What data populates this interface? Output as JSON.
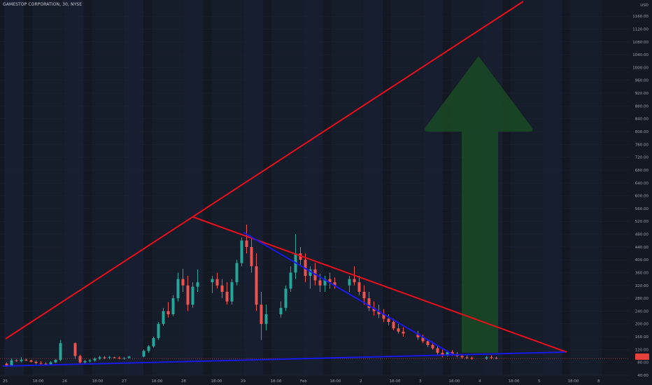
{
  "header": {
    "title": "GAMESTOP CORPORATION, 30, NYSE"
  },
  "currency": "USD",
  "colors": {
    "background": "#141823",
    "band_alt": "#18253a",
    "grid": "#1e2433",
    "up": "#26a69a",
    "down": "#ef5350",
    "trendline_red": "#e8101a",
    "trendline_blue": "#1a1ae6",
    "arrow": "#1a4a25",
    "axis_text": "#9aa0ad",
    "price_badge": "#e8413c"
  },
  "annotations": [
    {
      "name": "ascending-resistance-line",
      "color": "#e8101a"
    },
    {
      "name": "descending-trendline-red",
      "color": "#e8101a"
    },
    {
      "name": "descending-trendline-blue",
      "color": "#1a1ae6"
    },
    {
      "name": "support-line",
      "color": "#1a1ae6"
    },
    {
      "name": "up-arrow",
      "color": "#1a4a25",
      "direction": "up"
    }
  ],
  "chart_data": {
    "type": "candlestick",
    "title": "GAMESTOP CORPORATION, 30, NYSE",
    "ylim": [
      40,
      1180
    ],
    "y_ticks": [
      40,
      80,
      120,
      160,
      200,
      240,
      280,
      320,
      360,
      400,
      440,
      480,
      520,
      560,
      600,
      640,
      680,
      720,
      760,
      800,
      840,
      880,
      920,
      960,
      1000,
      1040,
      1080,
      1120,
      1160
    ],
    "y_tick_labels": [
      "40.00",
      "80.00",
      "120.00",
      "160.00",
      "200.00",
      "240.00",
      "280.00",
      "320.00",
      "360.00",
      "400.00",
      "440.00",
      "480.00",
      "520.00",
      "560.00",
      "600.00",
      "640.00",
      "680.00",
      "720.00",
      "760.00",
      "800.00",
      "840.00",
      "880.00",
      "920.00",
      "960.00",
      "1000.00",
      "1040.00",
      "1080.00",
      "1120.00",
      "1160.00"
    ],
    "x_tick_labels": [
      "25",
      "18:00",
      "26",
      "18:00",
      "27",
      "18:00",
      "28",
      "18:00",
      "29",
      "18:00",
      "Feb",
      "18:00",
      "2",
      "18:00",
      "3",
      "18:00",
      "4",
      "18:00",
      "5",
      "18:00",
      "8"
    ],
    "last_price": 92,
    "sessions": [
      {
        "label": "25",
        "ohlc": [
          [
            76,
            80,
            66,
            70
          ],
          [
            70,
            92,
            68,
            86
          ],
          [
            86,
            90,
            82,
            84
          ],
          [
            84,
            96,
            80,
            88
          ],
          [
            88,
            92,
            84,
            86
          ],
          [
            86,
            88,
            80,
            82
          ],
          [
            82,
            86,
            74,
            78
          ],
          [
            78,
            84,
            72,
            76
          ],
          [
            76,
            80,
            70,
            74
          ],
          [
            74,
            84,
            72,
            80
          ],
          [
            80,
            90,
            78,
            88
          ],
          [
            88,
            150,
            84,
            140
          ]
        ]
      },
      {
        "label": "26",
        "ohlc": [
          [
            140,
            142,
            92,
            100
          ],
          [
            100,
            104,
            76,
            80
          ],
          [
            80,
            88,
            76,
            84
          ],
          [
            84,
            90,
            80,
            86
          ],
          [
            86,
            96,
            82,
            92
          ],
          [
            92,
            100,
            88,
            96
          ],
          [
            96,
            100,
            90,
            94
          ],
          [
            94,
            100,
            90,
            96
          ],
          [
            96,
            98,
            92,
            94
          ],
          [
            94,
            98,
            90,
            92
          ],
          [
            92,
            96,
            88,
            94
          ],
          [
            94,
            100,
            92,
            98
          ]
        ]
      },
      {
        "label": "27",
        "ohlc": [
          [
            98,
            120,
            96,
            116
          ],
          [
            116,
            134,
            110,
            130
          ],
          [
            130,
            160,
            126,
            156
          ],
          [
            156,
            206,
            150,
            200
          ],
          [
            200,
            250,
            194,
            240
          ],
          [
            240,
            268,
            220,
            230
          ],
          [
            230,
            290,
            224,
            280
          ],
          [
            280,
            360,
            270,
            340
          ],
          [
            340,
            372,
            300,
            320
          ],
          [
            320,
            350,
            240,
            260
          ],
          [
            260,
            330,
            250,
            316
          ],
          [
            316,
            370,
            300,
            330
          ]
        ]
      },
      {
        "label": "28",
        "ohlc": [
          [
            330,
            350,
            296,
            340
          ],
          [
            340,
            360,
            310,
            320
          ],
          [
            320,
            340,
            280,
            300
          ],
          [
            300,
            330,
            260,
            270
          ],
          [
            270,
            340,
            260,
            330
          ],
          [
            330,
            400,
            320,
            390
          ],
          [
            390,
            470,
            380,
            460
          ],
          [
            460,
            510,
            420,
            440
          ],
          [
            440,
            470,
            360,
            380
          ],
          [
            380,
            420,
            240,
            260
          ],
          [
            260,
            300,
            150,
            200
          ],
          [
            200,
            260,
            180,
            230
          ]
        ]
      },
      {
        "label": "29",
        "ohlc": [
          [
            230,
            270,
            220,
            250
          ],
          [
            250,
            320,
            240,
            310
          ],
          [
            310,
            380,
            300,
            360
          ],
          [
            360,
            480,
            340,
            420
          ],
          [
            420,
            440,
            380,
            400
          ],
          [
            400,
            420,
            330,
            350
          ],
          [
            350,
            380,
            310,
            370
          ],
          [
            370,
            390,
            320,
            336
          ],
          [
            336,
            356,
            300,
            320
          ],
          [
            320,
            350,
            300,
            340
          ],
          [
            340,
            360,
            310,
            330
          ],
          [
            330,
            345,
            310,
            320
          ]
        ]
      },
      {
        "label": "Feb",
        "ohlc": [
          [
            320,
            350,
            300,
            340
          ],
          [
            340,
            380,
            320,
            330
          ],
          [
            330,
            350,
            290,
            300
          ],
          [
            300,
            320,
            260,
            280
          ],
          [
            280,
            300,
            240,
            250
          ],
          [
            250,
            270,
            226,
            240
          ],
          [
            240,
            260,
            218,
            230
          ],
          [
            230,
            246,
            206,
            216
          ],
          [
            216,
            230,
            196,
            206
          ],
          [
            206,
            216,
            180,
            186
          ],
          [
            186,
            200,
            170,
            176
          ],
          [
            176,
            190,
            160,
            170
          ]
        ]
      },
      {
        "label": "2",
        "ohlc": [
          [
            170,
            178,
            150,
            158
          ],
          [
            158,
            166,
            140,
            146
          ],
          [
            146,
            152,
            128,
            134
          ],
          [
            134,
            140,
            120,
            124
          ],
          [
            124,
            130,
            104,
            110
          ],
          [
            110,
            120,
            96,
            104
          ],
          [
            104,
            116,
            98,
            112
          ],
          [
            112,
            118,
            100,
            106
          ],
          [
            106,
            112,
            96,
            100
          ],
          [
            100,
            106,
            92,
            96
          ],
          [
            96,
            102,
            90,
            94
          ],
          [
            94,
            98,
            88,
            92
          ]
        ]
      },
      {
        "label": "3",
        "ohlc": [
          [
            92,
            100,
            88,
            96
          ],
          [
            96,
            102,
            90,
            94
          ],
          [
            94,
            98,
            90,
            92
          ]
        ]
      }
    ]
  }
}
